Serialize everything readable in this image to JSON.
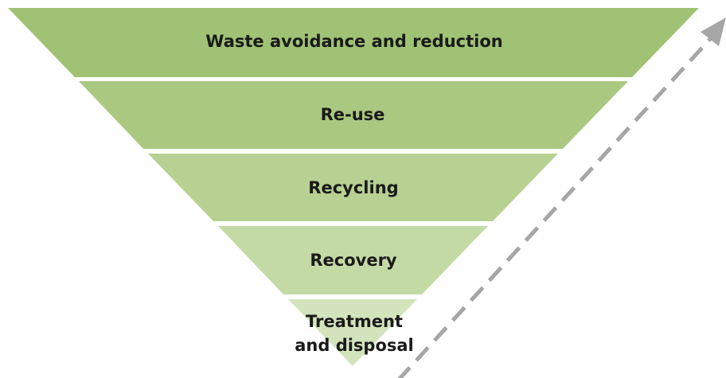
{
  "levels": [
    {
      "label": "Waste avoidance and reduction"
    },
    {
      "label": "Re-use"
    },
    {
      "label": "Recycling"
    },
    {
      "label": "Recovery"
    },
    {
      "lines": [
        "Treatment",
        "and disposal"
      ]
    }
  ]
}
